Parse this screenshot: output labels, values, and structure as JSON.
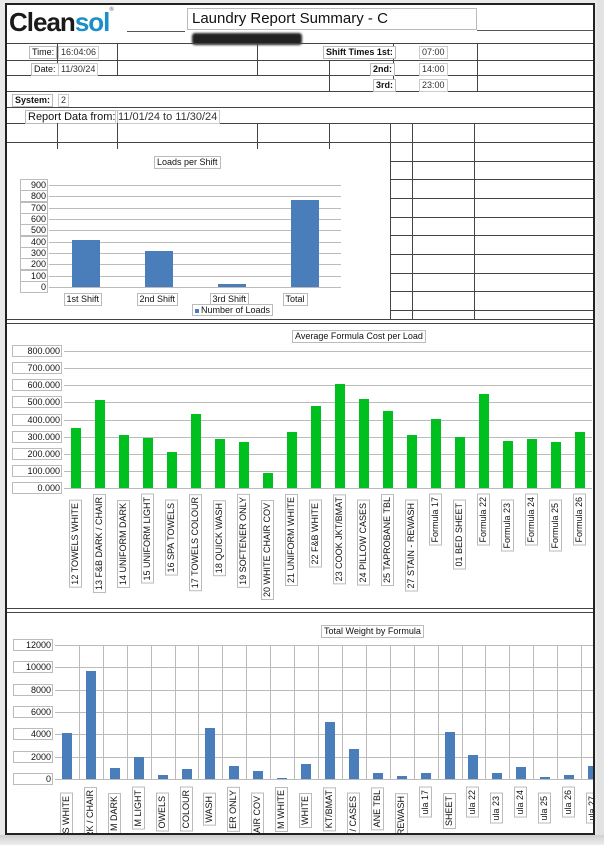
{
  "header": {
    "logo_part1": "Clean",
    "logo_part2": "sol",
    "logo_mark": "®",
    "title": "Laundry Report Summary - C"
  },
  "info": {
    "time_label": "Time:",
    "time_value": "16:04:06",
    "date_label": "Date:",
    "date_value": "11/30/24",
    "shift_times_label": "Shift Times 1st:",
    "shift1_value": "07:00",
    "shift2_label": "2nd:",
    "shift2_value": "14:00",
    "shift3_label": "3rd:",
    "shift3_value": "23:00",
    "system_label": "System:",
    "system_value": "2",
    "report_label": "Report Data from:",
    "report_value": "11/01/24 to 11/30/24"
  },
  "colors": {
    "blue_bar": "#4a7ebb",
    "green_bar": "#00c020",
    "logo_blue": "#1a8fc9"
  },
  "chart_data": [
    {
      "type": "bar",
      "title": "Loads per Shift",
      "categories": [
        "1st Shift",
        "2nd Shift",
        "3rd Shift",
        "Total"
      ],
      "series": [
        {
          "name": "Number of Loads",
          "values": [
            415,
            320,
            25,
            765
          ]
        }
      ],
      "yticks": [
        "900",
        "800",
        "700",
        "600",
        "500",
        "400",
        "300",
        "200",
        "100",
        "0"
      ],
      "ylim": [
        0,
        900
      ],
      "grid": true,
      "legend_position": "bottom"
    },
    {
      "type": "bar",
      "title": "Average Formula Cost per Load",
      "title_parts": [
        "Average",
        "Formula Cost",
        "per Load"
      ],
      "categories": [
        "12 TOWELS WHITE",
        "13 F&B DARK / CHAIR",
        "14 UNIFORM DARK",
        "15 UNIFORM LIGHT",
        "16 SPA TOWELS",
        "17 TOWELS COLOUR",
        "18 QUICK WASH",
        "19 SOFTENER ONLY",
        "20 WHITE CHAIR COV",
        "21 UNIFORM WHITE",
        "22 F&B WHITE",
        "23 COOK JKT/BMAT",
        "24 PILLOW CASES",
        "25 TAPROBANE TBL",
        "27 STAIN - REWASH",
        "Formula 17",
        "01 BED SHEET",
        "Formula 22",
        "Formula 23",
        "Formula 24",
        "Formula 25",
        "Formula 26"
      ],
      "values": [
        350,
        515,
        310,
        290,
        210,
        435,
        285,
        270,
        85,
        325,
        480,
        610,
        520,
        450,
        310,
        405,
        300,
        550,
        275,
        285,
        270,
        325
      ],
      "yticks": [
        "800.000",
        "700.000",
        "600.000",
        "500.000",
        "400.000",
        "300.000",
        "200.000",
        "100.000",
        "0.000"
      ],
      "ylim": [
        0,
        800
      ],
      "grid": true
    },
    {
      "type": "bar",
      "title": "Total Weight by Formula",
      "categories": [
        "S WHITE",
        "RK / CHAIR",
        "M DARK",
        "M LIGHT",
        "OWELS",
        "COLOUR",
        "WASH",
        "ER ONLY",
        "HAIR COV",
        "M WHITE",
        "WHITE",
        "KT/BMAT",
        "/ CASES",
        "ANE TBL",
        "REWASH",
        "ula 17",
        "SHEET",
        "ula 22",
        "ula 23",
        "ula 24",
        "ula 25",
        "ula 26",
        "ula 27"
      ],
      "values": [
        4100,
        9700,
        950,
        2000,
        350,
        900,
        4600,
        1200,
        750,
        50,
        1300,
        5100,
        2700,
        550,
        250,
        500,
        4250,
        2150,
        500,
        1100,
        150,
        350,
        1200
      ],
      "yticks": [
        "12000",
        "10000",
        "8000",
        "6000",
        "4000",
        "2000",
        "0"
      ],
      "ylim": [
        0,
        12000
      ],
      "grid": true
    }
  ]
}
